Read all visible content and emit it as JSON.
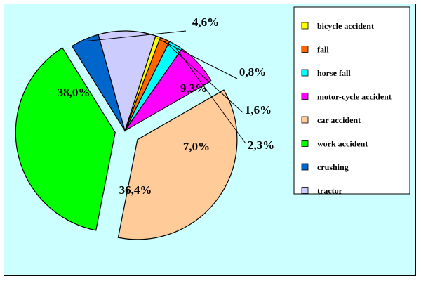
{
  "colors": {
    "plot_background": "#ccffff",
    "frame_border": "#000000"
  },
  "chart_data": {
    "type": "pie",
    "title": "",
    "legend_position": "right",
    "start_angle_deg": 72,
    "direction": "clockwise",
    "slices": [
      {
        "label": "bicycle accident",
        "value": 0.8,
        "display": "0,8%",
        "color": "#ffff00"
      },
      {
        "label": "fall",
        "value": 1.6,
        "display": "1,6%",
        "color": "#ff6600"
      },
      {
        "label": "horse fall",
        "value": 2.3,
        "display": "2,3%",
        "color": "#00ffff"
      },
      {
        "label": "motor-cycle accident",
        "value": 7.0,
        "display": "7,0%",
        "color": "#ff00ff"
      },
      {
        "label": "car accident",
        "value": 36.4,
        "display": "36,4%",
        "color": "#ffcc99"
      },
      {
        "label": "work accident",
        "value": 38.0,
        "display": "38,0%",
        "color": "#00ff00"
      },
      {
        "label": "crushing",
        "value": 4.6,
        "display": "4,6%",
        "color": "#0066cc"
      },
      {
        "label": "tractor",
        "value": 9.3,
        "display": "9,3%",
        "color": "#ccccff"
      }
    ]
  }
}
